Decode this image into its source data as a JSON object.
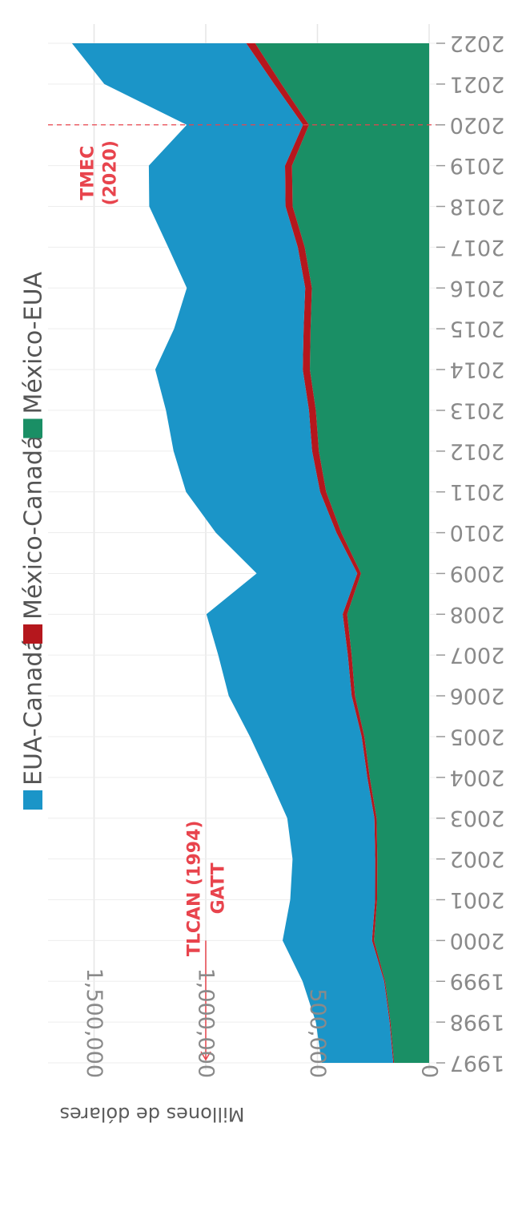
{
  "chart_data": {
    "type": "area",
    "stacked": true,
    "x": [
      1997,
      1998,
      1999,
      2000,
      2001,
      2002,
      2003,
      2004,
      2005,
      2006,
      2007,
      2008,
      2009,
      2010,
      2011,
      2012,
      2013,
      2014,
      2015,
      2016,
      2017,
      2018,
      2019,
      2020,
      2021,
      2022
    ],
    "series": [
      {
        "name": "México-EUA",
        "color": "#1a8f65",
        "values": [
          157000,
          173000,
          197000,
          247000,
          233000,
          232000,
          235000,
          266000,
          290000,
          332000,
          347000,
          367000,
          305000,
          393000,
          461000,
          494000,
          507000,
          534000,
          531000,
          525000,
          557000,
          611000,
          614000,
          538000,
          661000,
          779000
        ]
      },
      {
        "name": "México-Canadá",
        "color": "#b5171d",
        "values": [
          4000,
          4200,
          4500,
          9000,
          9000,
          9500,
          10000,
          11000,
          12000,
          15000,
          17000,
          20000,
          17000,
          22000,
          27000,
          30000,
          31000,
          32000,
          31000,
          30000,
          31000,
          32000,
          31000,
          27000,
          33000,
          40000
        ]
      },
      {
        "name": "EUA-Canadá",
        "color": "#1b95c8",
        "values": [
          320000,
          330000,
          365000,
          400000,
          380000,
          370000,
          390000,
          440000,
          500000,
          550000,
          580000,
          610000,
          450000,
          540000,
          600000,
          620000,
          640000,
          660000,
          580000,
          530000,
          580000,
          610000,
          610000,
          520000,
          760000,
          780000
        ]
      }
    ],
    "ylabel": "Millones de dólares",
    "yticks": [
      0,
      500000,
      1000000,
      1500000
    ],
    "ytick_labels": [
      "0",
      "500,000",
      "1,000,000",
      "1,500,000"
    ],
    "ylim": [
      0,
      1650000
    ],
    "legend_position": "top",
    "legend": [
      "EUA-Canadá",
      "México-Canadá",
      "México-EUA"
    ],
    "annotations": [
      {
        "lines": [
          "TLCAN (1994)",
          "GATT"
        ],
        "x": 2000,
        "arrow_to": 1997,
        "color": "#e8444d"
      },
      {
        "lines": [
          "TMEC",
          "(2020)"
        ],
        "x": 2020,
        "dashed_line": true,
        "color": "#e8444d"
      }
    ],
    "orientation": "rotated-90-clockwise",
    "grid": true
  }
}
